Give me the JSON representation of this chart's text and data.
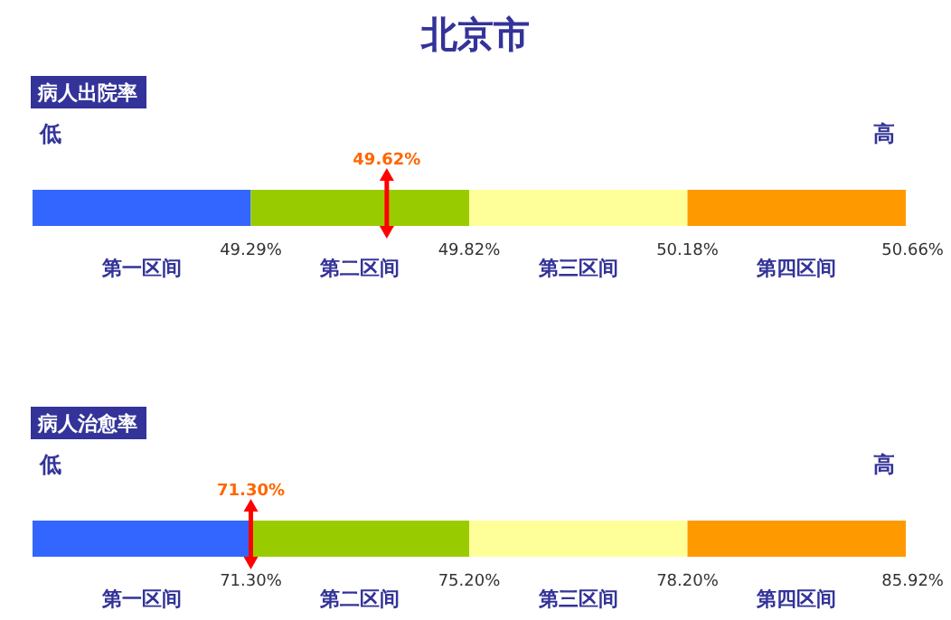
{
  "chart_data": [
    {
      "type": "other",
      "title": "北京市",
      "subtitle": "病人出院率",
      "categories": [
        "第一区间",
        "第二区间",
        "第三区间",
        "第四区间"
      ],
      "values": [
        49.29,
        49.82,
        50.18,
        50.66
      ],
      "value_labels": [
        "49.29%",
        "49.82%",
        "50.18%",
        "50.66%"
      ],
      "colors": [
        "#3366ff",
        "#99cc00",
        "#ffff99",
        "#ff9900"
      ],
      "annotations": [
        "低",
        "高",
        {
          "text": "49.62%",
          "x": "第二区间"
        }
      ]
    },
    {
      "type": "other",
      "subtitle": "病人治愈率",
      "categories": [
        "第一区间",
        "第二区间",
        "第三区间",
        "第四区间"
      ],
      "values": [
        71.3,
        75.2,
        78.2,
        85.92
      ],
      "value_labels": [
        "71.30%",
        "75.20%",
        "78.20%",
        "85.92%"
      ],
      "colors": [
        "#3366ff",
        "#99cc00",
        "#ffff99",
        "#ff9900"
      ],
      "annotations": [
        "低",
        "高",
        {
          "text": "71.30%",
          "x": "第一区间"
        }
      ]
    }
  ]
}
